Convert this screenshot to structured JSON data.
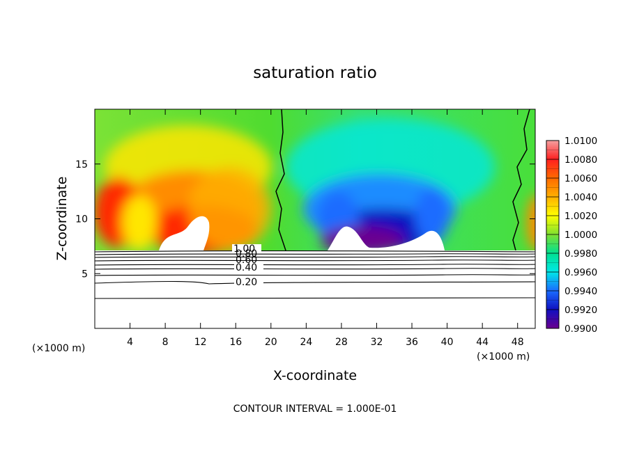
{
  "chart_data": {
    "type": "heatmap",
    "title": "saturation ratio",
    "xlabel": "X-coordinate",
    "ylabel": "Z-coordinate",
    "x_units_left": "(×1000 m)",
    "x_units_right": "(×1000 m)",
    "xlim": [
      0,
      50
    ],
    "ylim": [
      0,
      20
    ],
    "x_ticks": [
      4,
      8,
      12,
      16,
      20,
      24,
      28,
      32,
      36,
      40,
      44,
      48
    ],
    "y_ticks": [
      5,
      10,
      15
    ],
    "colorbar": {
      "range": [
        0.99,
        1.01
      ],
      "labels": [
        "1.0100",
        "1.0080",
        "1.0060",
        "1.0040",
        "1.0020",
        "1.0000",
        "0.9980",
        "0.9960",
        "0.9940",
        "0.9920",
        "0.9900"
      ]
    },
    "cloud_base_z": 7.0,
    "contour_labels": [
      "1.00",
      "0.80",
      "0.60",
      "0.40",
      "0.20"
    ],
    "contour_interval_text": "CONTOUR INTERVAL = 1.000E-01"
  }
}
